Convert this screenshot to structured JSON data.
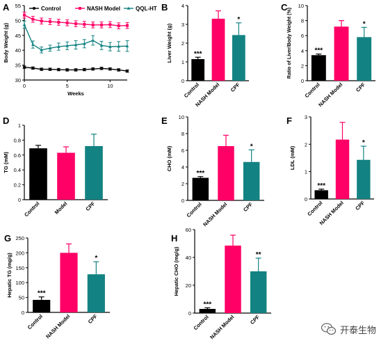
{
  "colors": {
    "control": "#000000",
    "model": "#ff0066",
    "treat": "#138282"
  },
  "watermark": {
    "text": "开泰生物",
    "icon": "wechat-icon"
  },
  "chart_data": [
    {
      "id": "A",
      "panel_label": "A",
      "type": "line",
      "xlabel": "Weeks",
      "ylabel": "Body Weight (g)",
      "xlim": [
        0,
        12
      ],
      "ylim": [
        30,
        55
      ],
      "xticks": [
        0,
        5,
        10
      ],
      "yticks": [
        30,
        35,
        40,
        45,
        50,
        55
      ],
      "legend": "top",
      "series": [
        {
          "name": "Control",
          "color_key": "control",
          "marker": "circle",
          "x": [
            0,
            1,
            2,
            3,
            4,
            5,
            6,
            7,
            8,
            9,
            10,
            11,
            12
          ],
          "y": [
            34.3,
            34.0,
            33.6,
            33.6,
            33.5,
            33.4,
            33.4,
            33.5,
            33.7,
            33.9,
            33.7,
            33.4,
            33.0
          ],
          "err": [
            0.4,
            0.4,
            0.4,
            0.4,
            0.4,
            0.4,
            0.4,
            0.4,
            0.4,
            0.4,
            0.4,
            0.4,
            0.4
          ]
        },
        {
          "name": "NASH Model",
          "color_key": "model",
          "marker": "square",
          "x": [
            0,
            1,
            2,
            3,
            4,
            5,
            6,
            7,
            8,
            9,
            10,
            11,
            12
          ],
          "y": [
            51.8,
            50.4,
            49.8,
            49.6,
            49.4,
            49.2,
            48.9,
            48.7,
            48.5,
            48.5,
            48.6,
            48.2,
            48.3
          ],
          "err": [
            1.0,
            1.0,
            1.0,
            1.0,
            1.0,
            1.0,
            1.0,
            1.0,
            1.0,
            1.0,
            1.0,
            1.0,
            1.0
          ]
        },
        {
          "name": "QQL-HT",
          "color_key": "treat",
          "marker": "triangle",
          "x": [
            0,
            1,
            2,
            3,
            4,
            5,
            6,
            7,
            8,
            9,
            10,
            11,
            12
          ],
          "y": [
            48.6,
            41.9,
            40.1,
            40.7,
            41.2,
            41.5,
            41.8,
            42.2,
            43.3,
            41.6,
            41.2,
            41.3,
            41.4
          ],
          "err": [
            1.2,
            1.2,
            1.0,
            1.0,
            1.2,
            1.3,
            1.4,
            1.4,
            1.6,
            1.4,
            1.4,
            1.6,
            1.8
          ]
        }
      ]
    },
    {
      "id": "B",
      "panel_label": "B",
      "type": "bar",
      "ylabel": "Liver Weight (g)",
      "ylim": [
        0,
        4
      ],
      "yticks": [
        0,
        1,
        2,
        3,
        4
      ],
      "categories": [
        "Control",
        "NASH Model",
        "CPF"
      ],
      "color_keys": [
        "control",
        "model",
        "treat"
      ],
      "values": [
        1.15,
        3.3,
        2.43
      ],
      "errors": [
        0.1,
        0.42,
        0.65
      ],
      "annotations": [
        "***",
        "",
        "*"
      ]
    },
    {
      "id": "C",
      "panel_label": "C",
      "type": "bar",
      "ylabel": "Ratio of Liver/Body Weight (%)",
      "ylim": [
        0,
        10
      ],
      "yticks": [
        0,
        2,
        4,
        6,
        8,
        10
      ],
      "categories": [
        "Control",
        "NASH Model",
        "CPF"
      ],
      "color_keys": [
        "control",
        "model",
        "treat"
      ],
      "values": [
        3.4,
        7.2,
        5.8
      ],
      "errors": [
        0.15,
        0.8,
        1.3
      ],
      "annotations": [
        "***",
        "",
        "*"
      ]
    },
    {
      "id": "D",
      "panel_label": "D",
      "type": "bar",
      "ylabel": "TG (mM)",
      "ylim": [
        0,
        1.0
      ],
      "yticks": [
        0.0,
        0.2,
        0.4,
        0.6,
        0.8,
        1.0
      ],
      "categories": [
        "Control",
        "Model",
        "CPF"
      ],
      "color_keys": [
        "control",
        "model",
        "treat"
      ],
      "values": [
        0.69,
        0.63,
        0.72
      ],
      "errors": [
        0.04,
        0.08,
        0.16
      ],
      "annotations": [
        "",
        "",
        ""
      ]
    },
    {
      "id": "E",
      "panel_label": "E",
      "type": "bar",
      "ylabel": "CHO (mM)",
      "ylim": [
        0,
        10
      ],
      "yticks": [
        0,
        2,
        4,
        6,
        8,
        10
      ],
      "categories": [
        "Control",
        "NASH Model",
        "CPF"
      ],
      "color_keys": [
        "control",
        "model",
        "treat"
      ],
      "values": [
        2.7,
        6.5,
        4.6
      ],
      "errors": [
        0.15,
        1.3,
        1.45
      ],
      "annotations": [
        "***",
        "",
        "*"
      ]
    },
    {
      "id": "F",
      "panel_label": "F",
      "type": "bar",
      "ylabel": "LDL (mM)",
      "ylim": [
        0,
        3
      ],
      "yticks": [
        0,
        1,
        2,
        3
      ],
      "categories": [
        "Control",
        "NASH Model",
        "CPF"
      ],
      "color_keys": [
        "control",
        "model",
        "treat"
      ],
      "values": [
        0.32,
        2.17,
        1.43
      ],
      "errors": [
        0.04,
        0.63,
        0.5
      ],
      "annotations": [
        "***",
        "",
        "*"
      ]
    },
    {
      "id": "G",
      "panel_label": "G",
      "type": "bar",
      "ylabel": "Hepatic TG (mg/g)",
      "ylim": [
        0,
        250
      ],
      "yticks": [
        0,
        50,
        100,
        150,
        200,
        250
      ],
      "categories": [
        "Control",
        "NASH Model",
        "CPF"
      ],
      "color_keys": [
        "control",
        "model",
        "treat"
      ],
      "values": [
        42,
        200,
        128
      ],
      "errors": [
        10,
        30,
        42
      ],
      "annotations": [
        "***",
        "",
        "*"
      ]
    },
    {
      "id": "H",
      "panel_label": "H",
      "type": "bar",
      "ylabel": "Hepatic CHO (mg/g)",
      "ylim": [
        0,
        60
      ],
      "yticks": [
        0,
        20,
        40,
        60
      ],
      "categories": [
        "Control",
        "NASH Model",
        "CPF"
      ],
      "color_keys": [
        "control",
        "model",
        "treat"
      ],
      "values": [
        3,
        48.5,
        30
      ],
      "errors": [
        0.8,
        7.5,
        9.5
      ],
      "annotations": [
        "***",
        "",
        "**"
      ]
    }
  ]
}
